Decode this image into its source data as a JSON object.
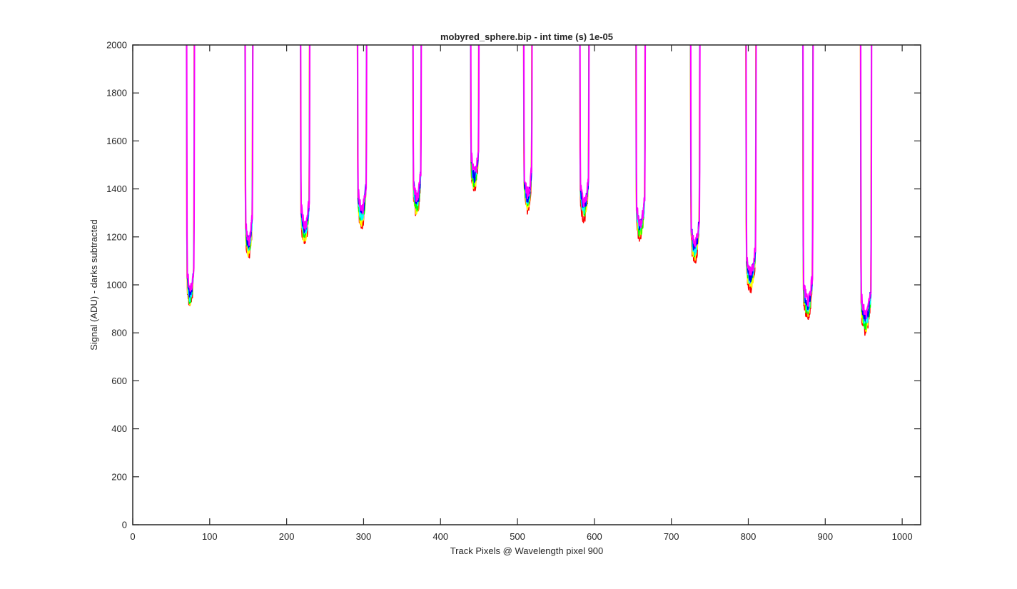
{
  "chart_data": {
    "type": "line",
    "title": "mobyred_sphere.bip - int time (s) 1e-05",
    "xlabel": "Track Pixels @ Wavelength pixel 900",
    "ylabel": "Signal (ADU) - darks subtracted",
    "xlim": [
      0,
      1024
    ],
    "ylim": [
      0,
      2000
    ],
    "xticks": [
      0,
      100,
      200,
      300,
      400,
      500,
      600,
      700,
      800,
      900,
      1000
    ],
    "yticks": [
      0,
      200,
      400,
      600,
      800,
      1000,
      1200,
      1400,
      1600,
      1800,
      2000
    ],
    "grid": false,
    "legend": "none",
    "series_colors": [
      "#ff0000",
      "#ffff00",
      "#00ff00",
      "#00ffff",
      "#0000ff",
      "#ff00ff"
    ],
    "dips": [
      {
        "left_x": 70,
        "right_x": 80,
        "min_y": 890
      },
      {
        "left_x": 146,
        "right_x": 156,
        "min_y": 1095
      },
      {
        "left_x": 218,
        "right_x": 230,
        "min_y": 1160
      },
      {
        "left_x": 292,
        "right_x": 304,
        "min_y": 1225
      },
      {
        "left_x": 364,
        "right_x": 375,
        "min_y": 1275
      },
      {
        "left_x": 439,
        "right_x": 450,
        "min_y": 1375
      },
      {
        "left_x": 508,
        "right_x": 519,
        "min_y": 1290
      },
      {
        "left_x": 581,
        "right_x": 593,
        "min_y": 1255
      },
      {
        "left_x": 654,
        "right_x": 666,
        "min_y": 1170
      },
      {
        "left_x": 725,
        "right_x": 737,
        "min_y": 1080
      },
      {
        "left_x": 797,
        "right_x": 810,
        "min_y": 960
      },
      {
        "left_x": 871,
        "right_x": 884,
        "min_y": 845
      },
      {
        "left_x": 946,
        "right_x": 960,
        "min_y": 785
      }
    ]
  }
}
